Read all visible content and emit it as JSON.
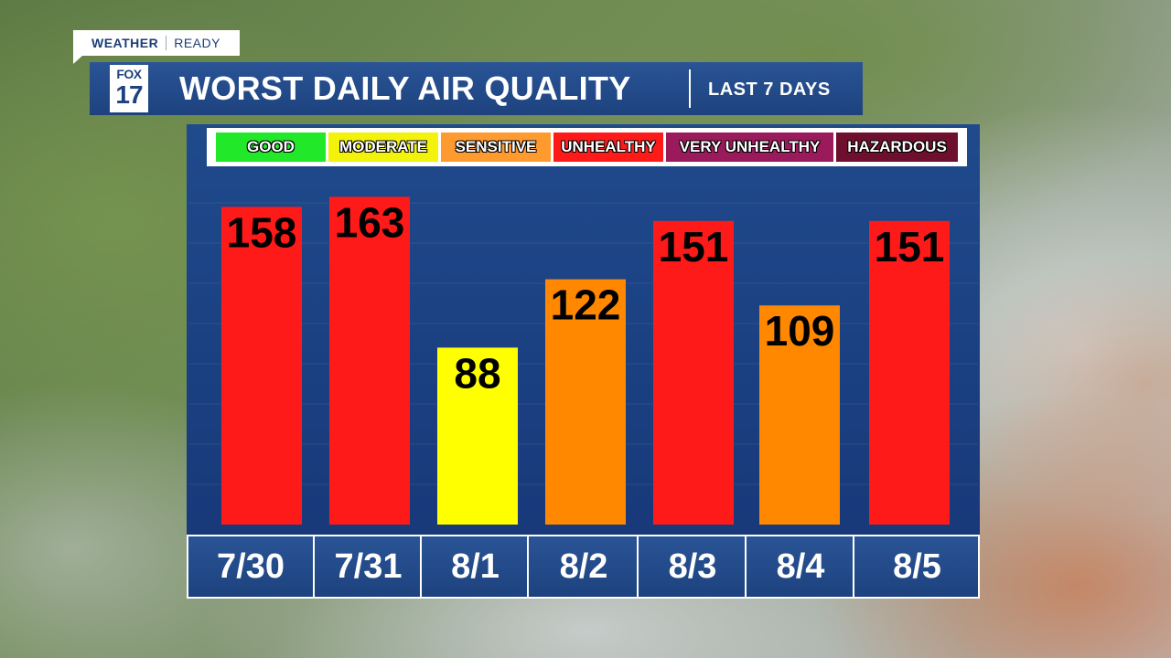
{
  "branding": {
    "tag_weather": "WEATHER",
    "tag_ready": "READY",
    "logo_top": "FOX",
    "logo_number": "17"
  },
  "header": {
    "title": "WORST DAILY AIR QUALITY",
    "subtitle": "LAST 7 DAYS"
  },
  "legend": [
    {
      "label": "GOOD",
      "color": "#22e82a"
    },
    {
      "label": "MODERATE",
      "color": "#f2f20a"
    },
    {
      "label": "SENSITIVE",
      "color": "#ff9a2e"
    },
    {
      "label": "UNHEALTHY",
      "color": "#ff1a1a"
    },
    {
      "label": "VERY UNHEALTHY",
      "color": "#9b1a5c"
    },
    {
      "label": "HAZARDOUS",
      "color": "#6e0f2e"
    }
  ],
  "chart_data": {
    "type": "bar",
    "title": "WORST DAILY AIR QUALITY",
    "subtitle": "LAST 7 DAYS",
    "categories": [
      "7/30",
      "7/31",
      "8/1",
      "8/2",
      "8/3",
      "8/4",
      "8/5"
    ],
    "values": [
      158,
      163,
      88,
      122,
      151,
      109,
      151
    ],
    "bar_colors": [
      "#ff1a1a",
      "#ff1a1a",
      "#ffff00",
      "#ff8800",
      "#ff1a1a",
      "#ff8800",
      "#ff1a1a"
    ],
    "ylim": [
      0,
      175
    ],
    "grid": true,
    "legend_placement": "top"
  }
}
